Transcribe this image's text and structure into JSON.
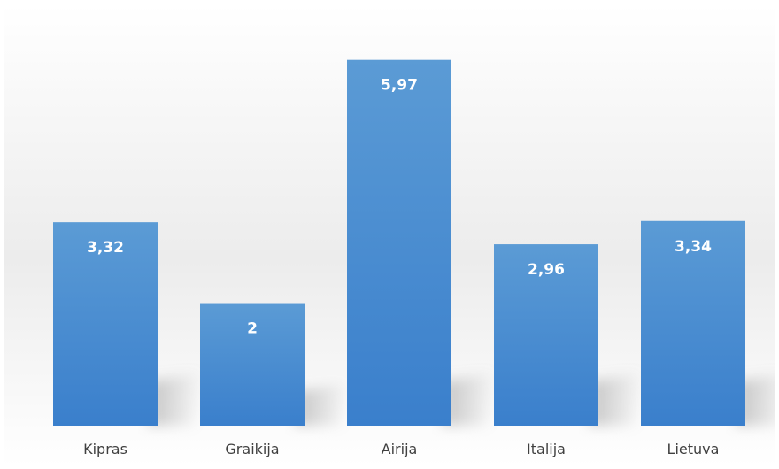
{
  "chart_data": {
    "type": "bar",
    "categories": [
      "Kipras",
      "Graikija",
      "Airija",
      "Italija",
      "Lietuva"
    ],
    "values": [
      3.32,
      2,
      5.97,
      2.96,
      3.34
    ],
    "value_labels": [
      "3,32",
      "2",
      "5,97",
      "2,96",
      "3,34"
    ],
    "title": "",
    "xlabel": "",
    "ylabel": "",
    "ylim": [
      0,
      6.5
    ],
    "grid": false,
    "legend": "none",
    "bar_color": "#3f86d2",
    "bar_color_top": "#5b9bd5",
    "label_color": "#ffffff"
  }
}
